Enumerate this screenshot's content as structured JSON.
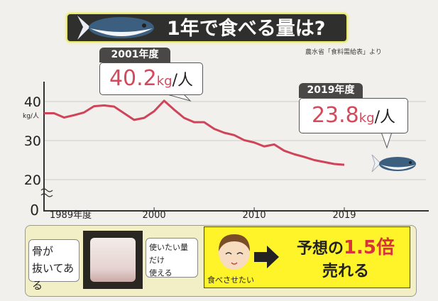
{
  "header": {
    "title": "1年で食べる量は?",
    "source": "農水省「食料需給表」より"
  },
  "callouts": [
    {
      "year_label": "2001年度",
      "value": "40.2",
      "unit": "kg",
      "per": "/人"
    },
    {
      "year_label": "2019年度",
      "value": "23.8",
      "unit": "kg",
      "per": "/人"
    }
  ],
  "chart_data": {
    "type": "line",
    "title": "1年で食べる量は?",
    "ylabel": "kg/人",
    "x_ticks": [
      "1989年度",
      "2000",
      "2010",
      "2019"
    ],
    "y_ticks": [
      "0",
      "20",
      "30",
      "40"
    ],
    "y_axis_break": true,
    "ylim": [
      0,
      43
    ],
    "grid": true,
    "line_color": "#d0445a",
    "x": [
      1989,
      1990,
      1991,
      1992,
      1993,
      1994,
      1995,
      1996,
      1997,
      1998,
      1999,
      2000,
      2001,
      2002,
      2003,
      2004,
      2005,
      2006,
      2007,
      2008,
      2009,
      2010,
      2011,
      2012,
      2013,
      2014,
      2015,
      2016,
      2017,
      2018,
      2019
    ],
    "values": [
      37.0,
      37.0,
      35.9,
      36.5,
      37.2,
      38.8,
      39.0,
      38.7,
      37.0,
      35.3,
      35.8,
      37.5,
      40.2,
      37.9,
      35.8,
      34.7,
      34.7,
      33.0,
      32.0,
      31.4,
      30.1,
      29.5,
      28.5,
      29.0,
      27.4,
      26.5,
      25.8,
      25.0,
      24.5,
      24.0,
      23.8
    ]
  },
  "panel": {
    "bubble_left": [
      "骨が",
      "抜いてある"
    ],
    "bubble_right": [
      "使いたい量だけ",
      "使える"
    ],
    "child_caption": "食べさせたい",
    "result_line1_prefix": "予想の",
    "result_highlight": "1.5倍",
    "result_line2": "売れる",
    "highlight_color": "#d8333b"
  }
}
